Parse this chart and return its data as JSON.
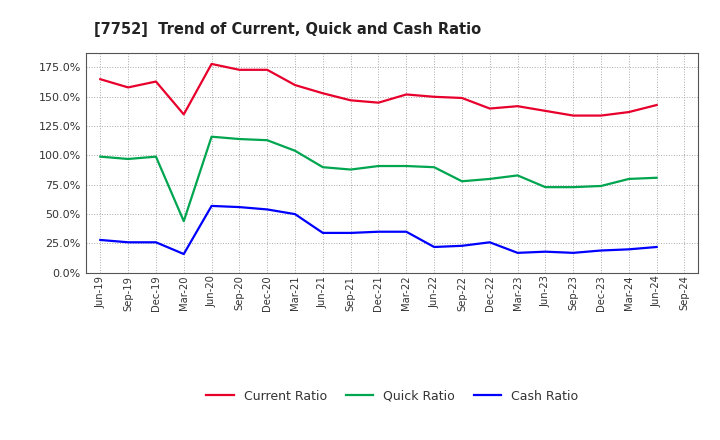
{
  "title": "[7752]  Trend of Current, Quick and Cash Ratio",
  "x_labels": [
    "Jun-19",
    "Sep-19",
    "Dec-19",
    "Mar-20",
    "Jun-20",
    "Sep-20",
    "Dec-20",
    "Mar-21",
    "Jun-21",
    "Sep-21",
    "Dec-21",
    "Mar-22",
    "Jun-22",
    "Sep-22",
    "Dec-22",
    "Mar-23",
    "Jun-23",
    "Sep-23",
    "Dec-23",
    "Mar-24",
    "Jun-24",
    "Sep-24"
  ],
  "current_ratio": [
    1.65,
    1.58,
    1.63,
    1.35,
    1.78,
    1.73,
    1.73,
    1.6,
    1.53,
    1.47,
    1.45,
    1.52,
    1.5,
    1.49,
    1.4,
    1.42,
    1.38,
    1.34,
    1.34,
    1.37,
    1.43,
    null
  ],
  "quick_ratio": [
    0.99,
    0.97,
    0.99,
    0.44,
    1.16,
    1.14,
    1.13,
    1.04,
    0.9,
    0.88,
    0.91,
    0.91,
    0.9,
    0.78,
    0.8,
    0.83,
    0.73,
    0.73,
    0.74,
    0.8,
    0.81,
    null
  ],
  "cash_ratio": [
    0.28,
    0.26,
    0.26,
    0.16,
    0.57,
    0.56,
    0.54,
    0.5,
    0.34,
    0.34,
    0.35,
    0.35,
    0.22,
    0.23,
    0.26,
    0.17,
    0.18,
    0.17,
    0.19,
    0.2,
    0.22,
    null
  ],
  "current_color": "#e8002d",
  "quick_color": "#00a550",
  "cash_color": "#0000ff",
  "background_color": "#ffffff",
  "grid_color": "#aaaaaa",
  "ylim": [
    0.0,
    1.875
  ],
  "yticks": [
    0.0,
    0.25,
    0.5,
    0.75,
    1.0,
    1.25,
    1.5,
    1.75
  ],
  "legend_labels": [
    "Current Ratio",
    "Quick Ratio",
    "Cash Ratio"
  ]
}
